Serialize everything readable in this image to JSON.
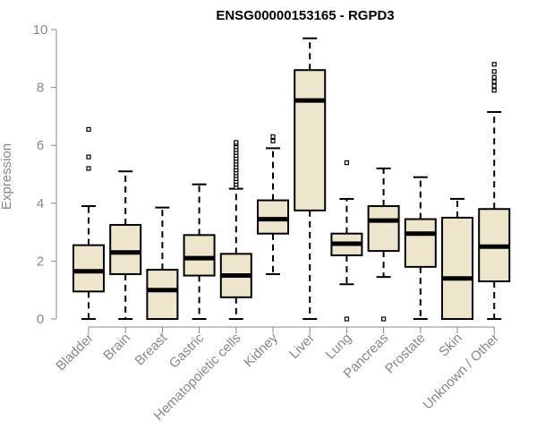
{
  "chart_data": {
    "type": "boxplot",
    "title": "ENSG00000153165 - RGPD3",
    "xlabel": "",
    "ylabel": "Expression",
    "ylim": [
      0,
      10
    ],
    "yticks": [
      0,
      2,
      4,
      6,
      8,
      10
    ],
    "grid": false,
    "legend": "none",
    "colors": {
      "box_fill": "#ede6cc",
      "box_stroke": "#000000",
      "axis": "#888888",
      "title": "#000000"
    },
    "categories": [
      "Bladder",
      "Brain",
      "Breast",
      "Gastric",
      "Hematopoietic cells",
      "Kidney",
      "Liver",
      "Lung",
      "Pancreas",
      "Prostate",
      "Skin",
      "Unknown / Other"
    ],
    "boxes": [
      {
        "category": "Bladder",
        "whisker_low": 0,
        "q1": 0.95,
        "median": 1.65,
        "q3": 2.55,
        "whisker_high": 3.9,
        "outliers": [
          5.2,
          5.6,
          6.55
        ]
      },
      {
        "category": "Brain",
        "whisker_low": 0,
        "q1": 1.55,
        "median": 2.3,
        "q3": 3.25,
        "whisker_high": 5.1,
        "outliers": []
      },
      {
        "category": "Breast",
        "whisker_low": 0,
        "q1": 0,
        "median": 1.0,
        "q3": 1.7,
        "whisker_high": 3.85,
        "outliers": []
      },
      {
        "category": "Gastric",
        "whisker_low": 0,
        "q1": 1.5,
        "median": 2.1,
        "q3": 2.9,
        "whisker_high": 4.65,
        "outliers": []
      },
      {
        "category": "Hematopoietic cells",
        "whisker_low": 0,
        "q1": 0.75,
        "median": 1.5,
        "q3": 2.25,
        "whisker_high": 4.5,
        "outliers": [
          4.55,
          4.65,
          4.75,
          4.85,
          4.95,
          5.05,
          5.15,
          5.25,
          5.35,
          5.45,
          5.55,
          5.65,
          5.75,
          5.85,
          5.95,
          6.05,
          6.1
        ]
      },
      {
        "category": "Kidney",
        "whisker_low": 1.55,
        "q1": 2.95,
        "median": 3.45,
        "q3": 4.1,
        "whisker_high": 5.9,
        "outliers": [
          6.15,
          6.3
        ]
      },
      {
        "category": "Liver",
        "whisker_low": 0,
        "q1": 3.75,
        "median": 7.55,
        "q3": 8.6,
        "whisker_high": 9.7,
        "outliers": []
      },
      {
        "category": "Lung",
        "whisker_low": 1.2,
        "q1": 2.2,
        "median": 2.6,
        "q3": 2.95,
        "whisker_high": 4.15,
        "outliers": [
          0,
          5.4
        ]
      },
      {
        "category": "Pancreas",
        "whisker_low": 1.45,
        "q1": 2.35,
        "median": 3.4,
        "q3": 3.9,
        "whisker_high": 5.2,
        "outliers": [
          0
        ]
      },
      {
        "category": "Prostate",
        "whisker_low": 0,
        "q1": 1.8,
        "median": 2.95,
        "q3": 3.45,
        "whisker_high": 4.9,
        "outliers": []
      },
      {
        "category": "Skin",
        "whisker_low": 0,
        "q1": 0,
        "median": 1.4,
        "q3": 3.5,
        "whisker_high": 4.15,
        "outliers": []
      },
      {
        "category": "Unknown / Other",
        "whisker_low": 0,
        "q1": 1.3,
        "median": 2.5,
        "q3": 3.8,
        "whisker_high": 7.15,
        "outliers": [
          7.9,
          8.05,
          8.2,
          8.35,
          8.55,
          8.8
        ]
      }
    ]
  }
}
